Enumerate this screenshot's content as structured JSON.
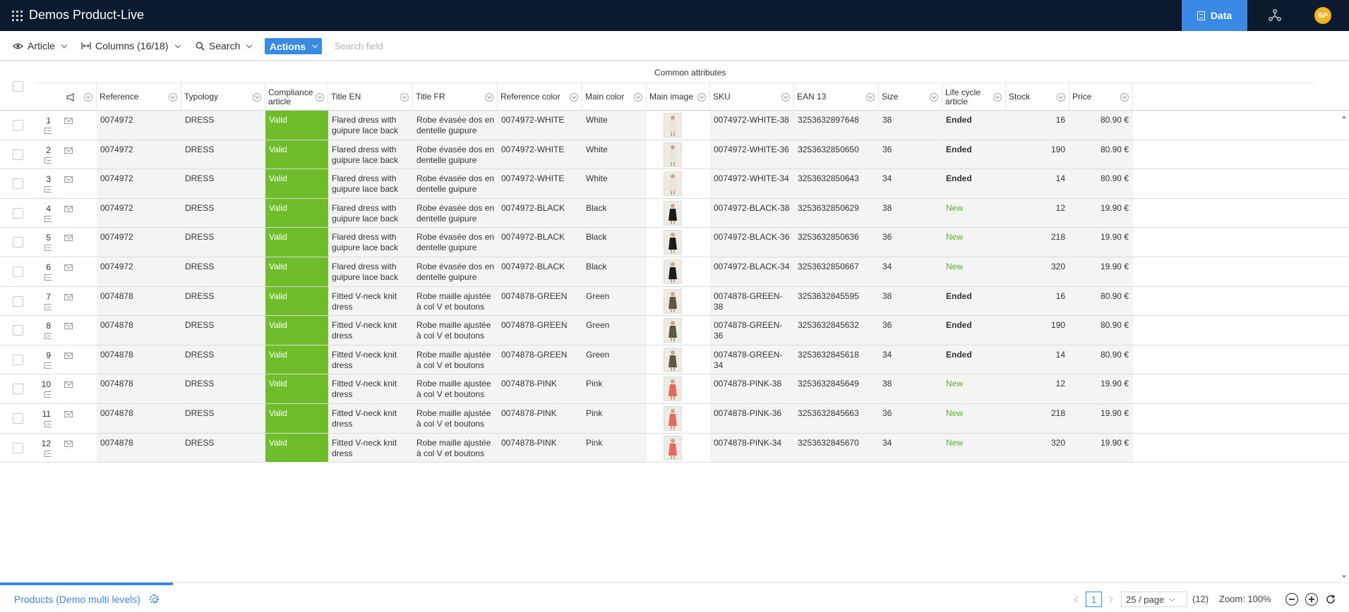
{
  "app": {
    "title": "Demos Product-Live",
    "nav_data_label": "Data",
    "user_initials": "BP"
  },
  "toolbar": {
    "view_label": "Article",
    "columns_label": "Columns (16/18)",
    "search_label": "Search",
    "actions_label": "Actions",
    "search_placeholder": "Search field"
  },
  "grid": {
    "group_header": "Common attributes",
    "columns": [
      {
        "key": "ref",
        "label": "Reference"
      },
      {
        "key": "typ",
        "label": "Typology"
      },
      {
        "key": "comp",
        "label": "Compliance article"
      },
      {
        "key": "ten",
        "label": "Title EN"
      },
      {
        "key": "tfr",
        "label": "Title FR"
      },
      {
        "key": "rcol",
        "label": "Reference color"
      },
      {
        "key": "mcol",
        "label": "Main color"
      },
      {
        "key": "img",
        "label": "Main image"
      },
      {
        "key": "sku",
        "label": "SKU"
      },
      {
        "key": "ean",
        "label": "EAN 13"
      },
      {
        "key": "size",
        "label": "Size"
      },
      {
        "key": "life",
        "label": "Life cycle article"
      },
      {
        "key": "stock",
        "label": "Stock"
      },
      {
        "key": "price",
        "label": "Price"
      }
    ],
    "rows": [
      {
        "n": "1",
        "ref": "0074972",
        "typ": "DRESS",
        "comp": "Valid",
        "ten": "Flared dress with guipure lace back",
        "tfr": "Robe évasée dos en dentelle guipure",
        "rcol": "0074972-WHITE",
        "mcol": "White",
        "sku": "0074972-WHITE-38",
        "ean": "3253632897648",
        "size": "38",
        "life": "Ended",
        "stock": "16",
        "price": "80.90 €",
        "swatch": "#e8e4dc"
      },
      {
        "n": "2",
        "ref": "0074972",
        "typ": "DRESS",
        "comp": "Valid",
        "ten": "Flared dress with guipure lace back",
        "tfr": "Robe évasée dos en dentelle guipure",
        "rcol": "0074972-WHITE",
        "mcol": "White",
        "sku": "0074972-WHITE-36",
        "ean": "3253632850650",
        "size": "36",
        "life": "Ended",
        "stock": "190",
        "price": "80.90 €",
        "swatch": "#e8e4dc"
      },
      {
        "n": "3",
        "ref": "0074972",
        "typ": "DRESS",
        "comp": "Valid",
        "ten": "Flared dress with guipure lace back",
        "tfr": "Robe évasée dos en dentelle guipure",
        "rcol": "0074972-WHITE",
        "mcol": "White",
        "sku": "0074972-WHITE-34",
        "ean": "3253632850643",
        "size": "34",
        "life": "Ended",
        "stock": "14",
        "price": "80.90 €",
        "swatch": "#e8e4dc"
      },
      {
        "n": "4",
        "ref": "0074972",
        "typ": "DRESS",
        "comp": "Valid",
        "ten": "Flared dress with guipure lace back",
        "tfr": "Robe évasée dos en dentelle guipure",
        "rcol": "0074972-BLACK",
        "mcol": "Black",
        "sku": "0074972-BLACK-38",
        "ean": "3253632850629",
        "size": "38",
        "life": "New",
        "stock": "12",
        "price": "19.90 €",
        "swatch": "#1c1c1c"
      },
      {
        "n": "5",
        "ref": "0074972",
        "typ": "DRESS",
        "comp": "Valid",
        "ten": "Flared dress with guipure lace back",
        "tfr": "Robe évasée dos en dentelle guipure",
        "rcol": "0074972-BLACK",
        "mcol": "Black",
        "sku": "0074972-BLACK-36",
        "ean": "3253632850636",
        "size": "36",
        "life": "New",
        "stock": "218",
        "price": "19.90 €",
        "swatch": "#1c1c1c"
      },
      {
        "n": "6",
        "ref": "0074972",
        "typ": "DRESS",
        "comp": "Valid",
        "ten": "Flared dress with guipure lace back",
        "tfr": "Robe évasée dos en dentelle guipure",
        "rcol": "0074972-BLACK",
        "mcol": "Black",
        "sku": "0074972-BLACK-34",
        "ean": "3253632850667",
        "size": "34",
        "life": "New",
        "stock": "320",
        "price": "19.90 €",
        "swatch": "#1c1c1c"
      },
      {
        "n": "7",
        "ref": "0074878",
        "typ": "DRESS",
        "comp": "Valid",
        "ten": "Fitted V-neck knit dress",
        "tfr": "Robe maille ajustée à col V et boutons",
        "rcol": "0074878-GREEN",
        "mcol": "Green",
        "sku": "0074878-GREEN-38",
        "ean": "3253632845595",
        "size": "38",
        "life": "Ended",
        "stock": "16",
        "price": "80.90 €",
        "swatch": "#5c5a44"
      },
      {
        "n": "8",
        "ref": "0074878",
        "typ": "DRESS",
        "comp": "Valid",
        "ten": "Fitted V-neck knit dress",
        "tfr": "Robe maille ajustée à col V et boutons",
        "rcol": "0074878-GREEN",
        "mcol": "Green",
        "sku": "0074878-GREEN-36",
        "ean": "3253632845632",
        "size": "36",
        "life": "Ended",
        "stock": "190",
        "price": "80.90 €",
        "swatch": "#5c5a44"
      },
      {
        "n": "9",
        "ref": "0074878",
        "typ": "DRESS",
        "comp": "Valid",
        "ten": "Fitted V-neck knit dress",
        "tfr": "Robe maille ajustée à col V et boutons",
        "rcol": "0074878-GREEN",
        "mcol": "Green",
        "sku": "0074878-GREEN-34",
        "ean": "3253632845618",
        "size": "34",
        "life": "Ended",
        "stock": "14",
        "price": "80.90 €",
        "swatch": "#5c5a44"
      },
      {
        "n": "10",
        "ref": "0074878",
        "typ": "DRESS",
        "comp": "Valid",
        "ten": "Fitted V-neck knit dress",
        "tfr": "Robe maille ajustée à col V et boutons",
        "rcol": "0074878-PINK",
        "mcol": "Pink",
        "sku": "0074878-PINK-38",
        "ean": "3253632845649",
        "size": "38",
        "life": "New",
        "stock": "12",
        "price": "19.90 €",
        "swatch": "#e5685e"
      },
      {
        "n": "11",
        "ref": "0074878",
        "typ": "DRESS",
        "comp": "Valid",
        "ten": "Fitted V-neck knit dress",
        "tfr": "Robe maille ajustée à col V et boutons",
        "rcol": "0074878-PINK",
        "mcol": "Pink",
        "sku": "0074878-PINK-36",
        "ean": "3253632845663",
        "size": "36",
        "life": "New",
        "stock": "218",
        "price": "19.90 €",
        "swatch": "#e5685e"
      },
      {
        "n": "12",
        "ref": "0074878",
        "typ": "DRESS",
        "comp": "Valid",
        "ten": "Fitted V-neck knit dress",
        "tfr": "Robe maille ajustée à col V et boutons",
        "rcol": "0074878-PINK",
        "mcol": "Pink",
        "sku": "0074878-PINK-34",
        "ean": "3253632845670",
        "size": "34",
        "life": "New",
        "stock": "320",
        "price": "19.90 €",
        "swatch": "#e5685e"
      }
    ]
  },
  "footer": {
    "table_name": "Products (Demo multi levels)",
    "current_page": "1",
    "page_size": "25 / page",
    "total_count": "(12)",
    "zoom_label": "Zoom: 100%"
  },
  "colors": {
    "brand_dark": "#0c1a2e",
    "accent": "#3a8ae3",
    "valid_green": "#6fbd2b",
    "new_green": "#58b031"
  }
}
